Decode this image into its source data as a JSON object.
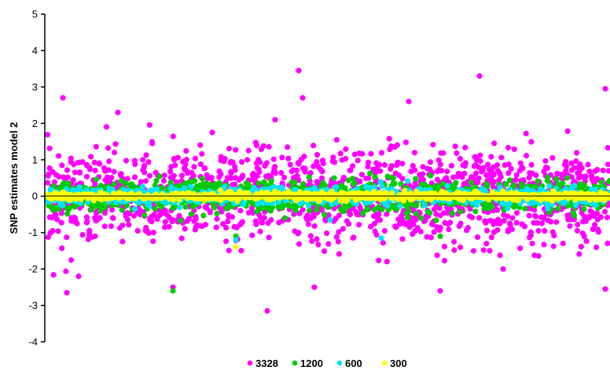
{
  "chart_data": {
    "type": "scatter",
    "title": "",
    "xlabel": "",
    "ylabel": "SNP estimates model 2",
    "ylim": [
      -4,
      5
    ],
    "yticks": [
      -4,
      -3,
      -2,
      -1,
      0,
      1,
      2,
      3,
      4,
      5
    ],
    "grid": false,
    "legend_position": "bottom-center",
    "series": [
      {
        "name": "3328",
        "color": "#ff00ff",
        "spread": 0.62,
        "n": 1500,
        "outliers": [
          [
            80,
            2.7
          ],
          [
            150,
            2.3
          ],
          [
            270,
            1.75
          ],
          [
            350,
            2.1
          ],
          [
            380,
            3.45
          ],
          [
            385,
            2.7
          ],
          [
            520,
            2.6
          ],
          [
            610,
            3.3
          ],
          [
            770,
            2.95
          ],
          [
            340,
            -3.15
          ],
          [
            770,
            -2.55
          ],
          [
            400,
            -2.5
          ],
          [
            220,
            -2.5
          ],
          [
            100,
            -2.2
          ],
          [
            85,
            -2.65
          ],
          [
            560,
            -2.6
          ],
          [
            640,
            -2.0
          ]
        ]
      },
      {
        "name": "1200",
        "color": "#00cc00",
        "spread": 0.2,
        "n": 1200,
        "outliers": [
          [
            220,
            -2.6
          ],
          [
            300,
            -1.1
          ],
          [
            560,
            -1.1
          ]
        ]
      },
      {
        "name": "600",
        "color": "#00e5ff",
        "spread": 0.11,
        "n": 1000,
        "outliers": [
          [
            300,
            -1.2
          ],
          [
            420,
            -0.65
          ],
          [
            485,
            -1.15
          ]
        ]
      },
      {
        "name": "300",
        "color": "#ffff00",
        "spread": 0.05,
        "n": 1000,
        "outliers": [
          [
            300,
            -1.4
          ]
        ]
      }
    ]
  }
}
